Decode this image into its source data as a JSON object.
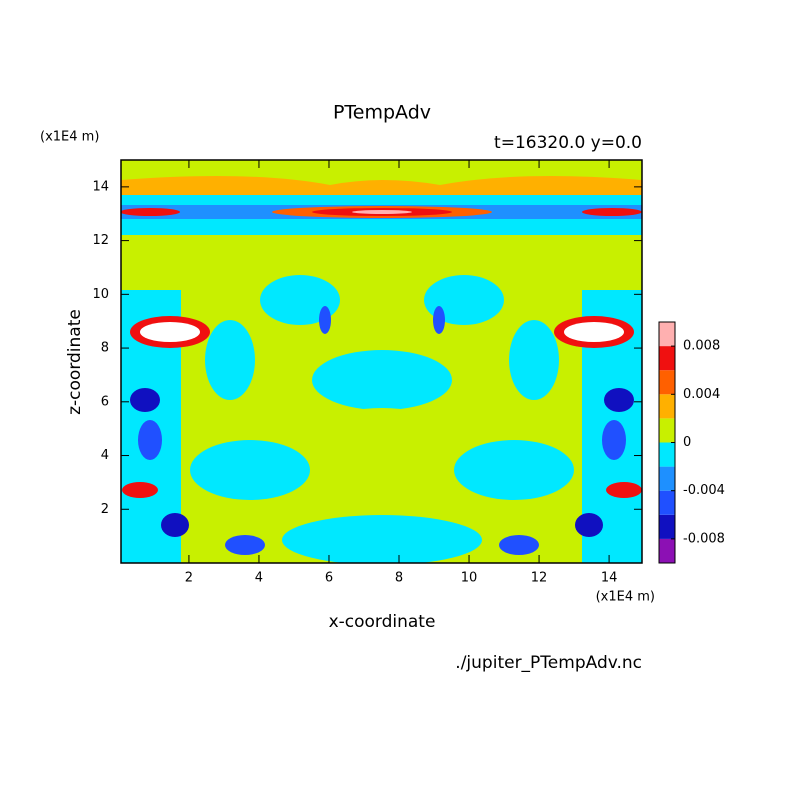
{
  "chart_data": {
    "type": "contour",
    "title": "PTempAdv",
    "subtitle": "t=16320.0 y=0.0",
    "xlabel": "x-coordinate",
    "ylabel": "z-coordinate",
    "x_unit": "(x1E4 m)",
    "y_unit": "(x1E4 m)",
    "footer": "./jupiter_PTempAdv.nc",
    "xlim": [
      0.06,
      14.94
    ],
    "ylim": [
      0.0,
      15.0
    ],
    "xticks": [
      2,
      4,
      6,
      8,
      10,
      12,
      14
    ],
    "yticks": [
      2,
      4,
      6,
      8,
      10,
      12,
      14
    ],
    "levels": [
      -0.01,
      -0.008,
      -0.006,
      -0.004,
      -0.002,
      0,
      0.002,
      0.004,
      0.006,
      0.008,
      0.01
    ],
    "colors": [
      "#8c10b4",
      "#1010c0",
      "#2050ff",
      "#1e90ff",
      "#00e8ff",
      "#c8f000",
      "#ffb000",
      "#ff6000",
      "#f01010",
      "#ffb0b0"
    ],
    "cticks": [
      -0.008,
      -0.004,
      0,
      0.004,
      0.008
    ]
  }
}
